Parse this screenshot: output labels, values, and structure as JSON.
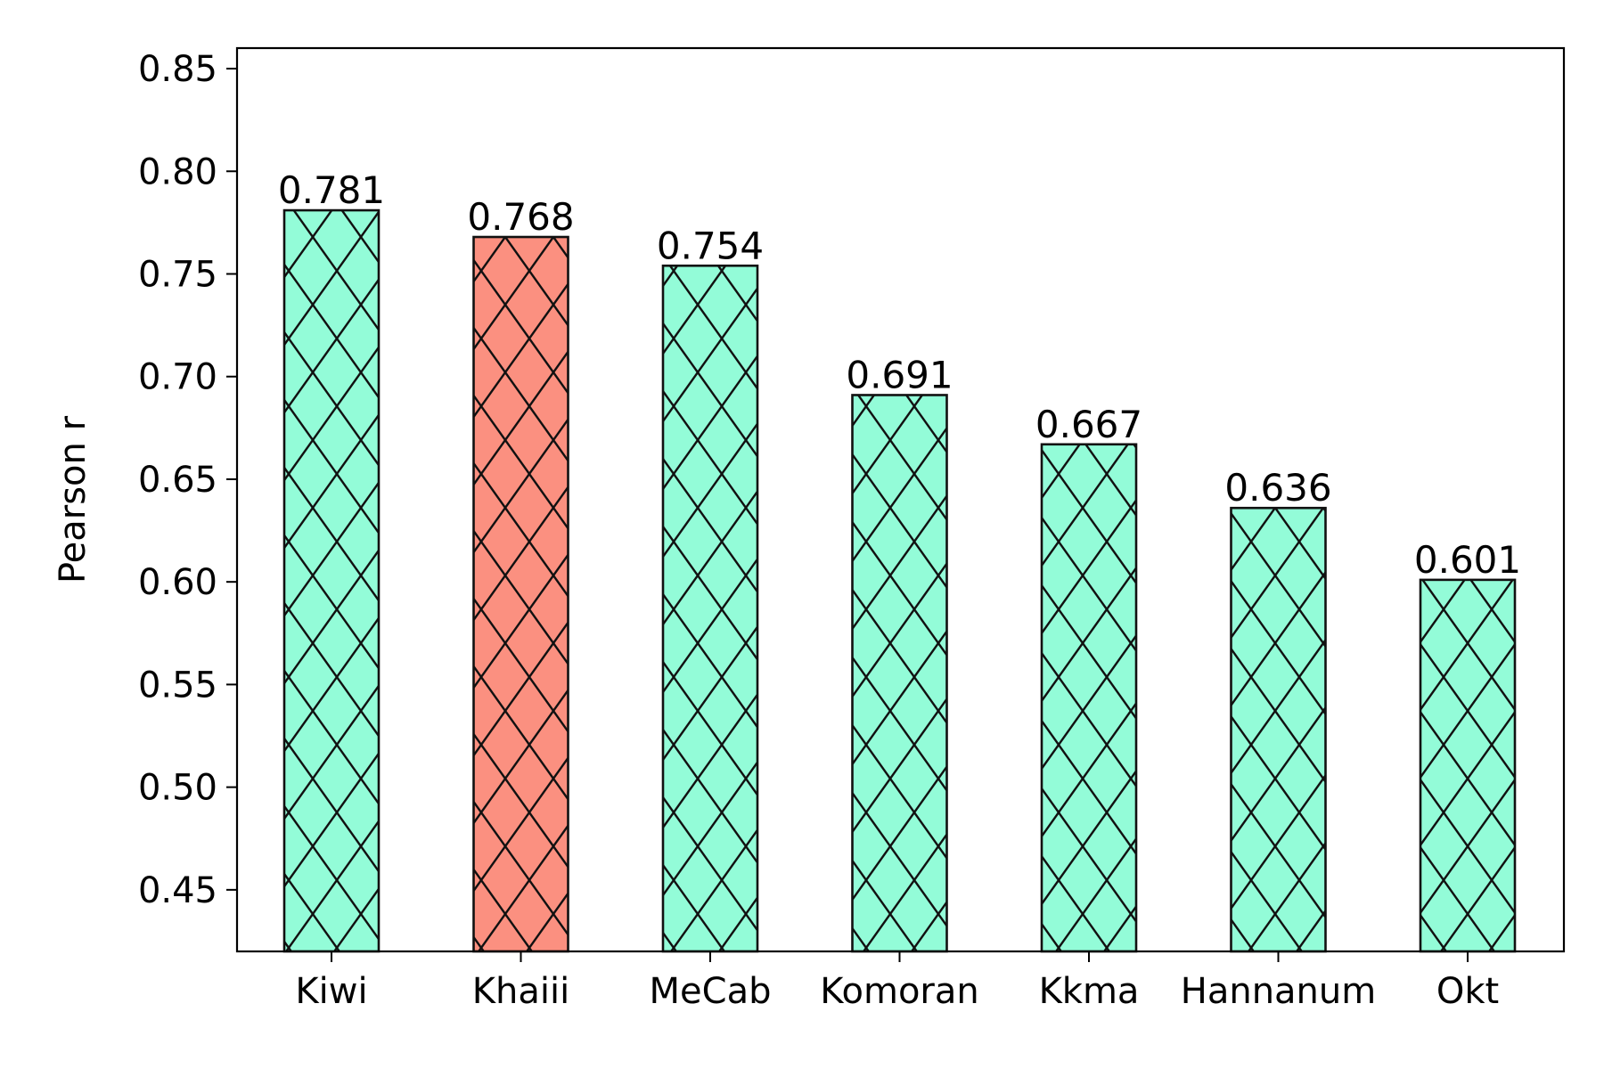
{
  "chart_data": {
    "type": "bar",
    "title": "",
    "xlabel": "",
    "ylabel": "Pearson r",
    "categories": [
      "Kiwi",
      "Khaiii",
      "MeCab",
      "Komoran",
      "Kkma",
      "Hannanum",
      "Okt"
    ],
    "values": [
      0.781,
      0.768,
      0.754,
      0.691,
      0.667,
      0.636,
      0.601
    ],
    "value_labels": [
      "0.781",
      "0.768",
      "0.754",
      "0.691",
      "0.667",
      "0.636",
      "0.601"
    ],
    "bar_colors": [
      "#93fcd8",
      "#fb9080",
      "#93fcd8",
      "#93fcd8",
      "#93fcd8",
      "#93fcd8",
      "#93fcd8"
    ],
    "highlight_color": "#fb9080",
    "base_color": "#93fcd8",
    "hatch": "x",
    "ylim": [
      0.42,
      0.86
    ],
    "yticks": [
      0.45,
      0.5,
      0.55,
      0.6,
      0.65,
      0.7,
      0.75,
      0.8,
      0.85
    ],
    "ytick_labels": [
      "0.45",
      "0.50",
      "0.55",
      "0.60",
      "0.65",
      "0.70",
      "0.75",
      "0.80",
      "0.85"
    ],
    "grid": false,
    "legend": "none"
  }
}
